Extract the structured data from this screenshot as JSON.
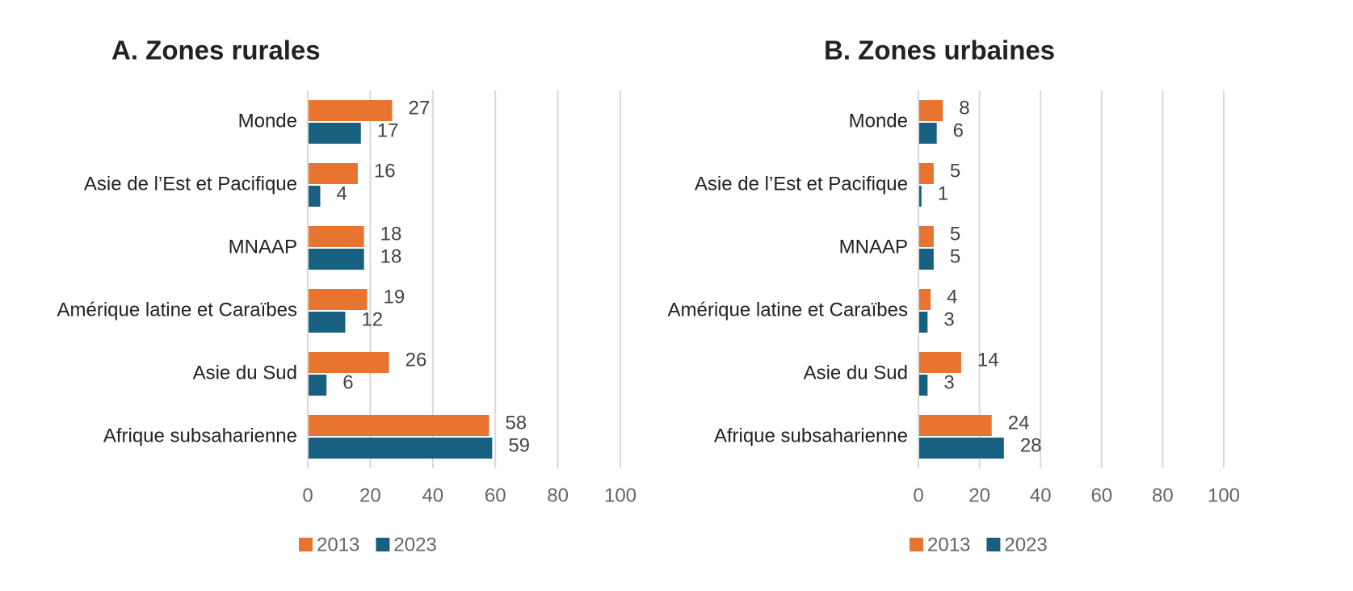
{
  "chart_data": [
    {
      "type": "bar",
      "orientation": "horizontal",
      "title": "A. Zones rurales",
      "categories": [
        "Monde",
        "Asie de l’Est et Pacifique",
        "MNAAP",
        "Amérique latine et Caraïbes",
        "Asie du Sud",
        "Afrique subsaharienne"
      ],
      "series": [
        {
          "name": "2013",
          "color": "#e87430",
          "values": [
            27,
            16,
            18,
            19,
            26,
            58
          ]
        },
        {
          "name": "2023",
          "color": "#17607f",
          "values": [
            17,
            4,
            18,
            12,
            6,
            59
          ]
        }
      ],
      "xlim": [
        0,
        100
      ],
      "xticks": [
        0,
        20,
        40,
        60,
        80,
        100
      ],
      "grid": true,
      "legend": "bottom"
    },
    {
      "type": "bar",
      "orientation": "horizontal",
      "title": "B. Zones urbaines",
      "categories": [
        "Monde",
        "Asie de l’Est et Pacifique",
        "MNAAP",
        "Amérique latine et Caraïbes",
        "Asie du Sud",
        "Afrique subsaharienne"
      ],
      "series": [
        {
          "name": "2013",
          "color": "#e87430",
          "values": [
            8,
            5,
            5,
            4,
            14,
            24
          ]
        },
        {
          "name": "2023",
          "color": "#17607f",
          "values": [
            6,
            1,
            5,
            3,
            3,
            28
          ]
        }
      ],
      "xlim": [
        0,
        100
      ],
      "xticks": [
        0,
        20,
        40,
        60,
        80,
        100
      ],
      "grid": true,
      "legend": "bottom"
    }
  ]
}
